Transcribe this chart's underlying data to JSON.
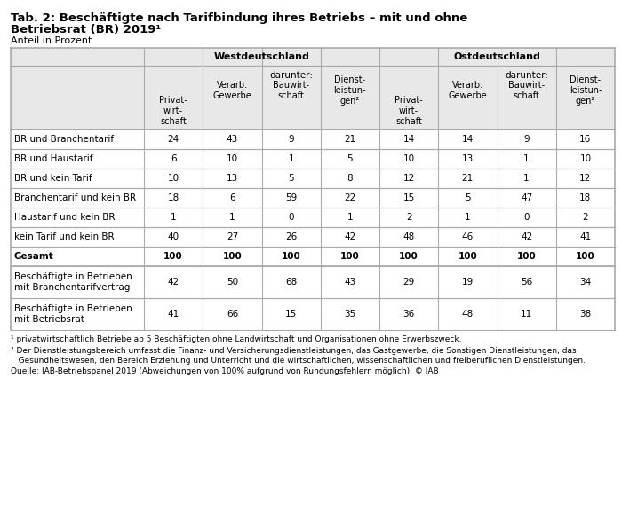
{
  "title_line1": "Tab. 2: Beschäftigte nach Tarifbindung ihres Betriebs – mit und ohne",
  "title_line2": "Betriebsrat (BR) 2019¹",
  "subtitle": "Anteil in Prozent",
  "west_label": "Westdeutschland",
  "east_label": "Ostdeutschland",
  "darunter": "darunter:",
  "col_headers": [
    "Privat-\nwirt-\nschaft",
    "Verarb.\nGewerbe",
    "Bauwirt-\nschaft",
    "Dienst-\nleistun-\ngen²",
    "Privat-\nwirt-\nschaft",
    "Verarb.\nGewerbe",
    "Bauwirt-\nschaft",
    "Dienst-\nleistun-\ngen²"
  ],
  "rows": [
    {
      "label": "BR und Branchentarif",
      "values": [
        "24",
        "43",
        "9",
        "21",
        "14",
        "14",
        "9",
        "16"
      ],
      "bold": false,
      "double_height": false
    },
    {
      "label": "BR und Haustarif",
      "values": [
        "6",
        "10",
        "1",
        "5",
        "10",
        "13",
        "1",
        "10"
      ],
      "bold": false,
      "double_height": false
    },
    {
      "label": "BR und kein Tarif",
      "values": [
        "10",
        "13",
        "5",
        "8",
        "12",
        "21",
        "1",
        "12"
      ],
      "bold": false,
      "double_height": false
    },
    {
      "label": "Branchentarif und kein BR",
      "values": [
        "18",
        "6",
        "59",
        "22",
        "15",
        "5",
        "47",
        "18"
      ],
      "bold": false,
      "double_height": false
    },
    {
      "label": "Haustarif und kein BR",
      "values": [
        "1",
        "1",
        "0",
        "1",
        "2",
        "1",
        "0",
        "2"
      ],
      "bold": false,
      "double_height": false
    },
    {
      "label": "kein Tarif und kein BR",
      "values": [
        "40",
        "27",
        "26",
        "42",
        "48",
        "46",
        "42",
        "41"
      ],
      "bold": false,
      "double_height": false
    },
    {
      "label": "Gesamt",
      "values": [
        "100",
        "100",
        "100",
        "100",
        "100",
        "100",
        "100",
        "100"
      ],
      "bold": true,
      "double_height": false
    },
    {
      "label": "Beschäftigte in Betrieben\nmit Branchentarifvertrag",
      "values": [
        "42",
        "50",
        "68",
        "43",
        "29",
        "19",
        "56",
        "34"
      ],
      "bold": false,
      "double_height": true
    },
    {
      "label": "Beschäftigte in Betrieben\nmit Betriebsrat",
      "values": [
        "41",
        "66",
        "15",
        "35",
        "36",
        "48",
        "11",
        "38"
      ],
      "bold": false,
      "double_height": true
    }
  ],
  "footnote1": "¹ privatwirtschaftlich Betriebe ab 5 Beschäftigten ohne Landwirtschaft und Organisationen ohne Erwerbszweck.",
  "footnote2a": "² Der Dienstleistungsbereich umfasst die Finanz- und Versicherungsdienstleistungen, das Gastgewerbe, die Sonstigen Dienstleistungen, das",
  "footnote2b": "   Gesundheitswesen, den Bereich Erziehung und Unterricht und die wirtschaftlichen, wissenschaftlichen und freiberuflichen Dienstleistungen.",
  "source": "Quelle: IAB-Betriebspanel 2019 (Abweichungen von 100% aufgrund von Rundungsfehlern möglich). © IAB",
  "header_bg": "#e8e8e8",
  "bg_color": "#ffffff",
  "text_color": "#000000",
  "line_color": "#aaaaaa"
}
